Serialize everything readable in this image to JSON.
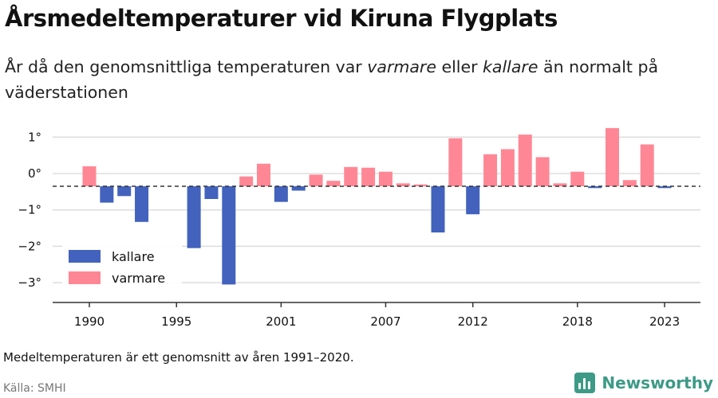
{
  "header": {
    "title": "Årsmedeltemperaturer vid Kiruna Flygplats",
    "subtitle_pre": "År då den genomsnittliga temperaturen var ",
    "subtitle_warm": "varmare",
    "subtitle_mid": " eller ",
    "subtitle_cold": "kallare",
    "subtitle_post": " än normalt på väderstationen"
  },
  "footer": {
    "note": "Medeltemperaturen är ett genomsnitt av åren 1991–2020.",
    "source": "Källa: SMHI",
    "brand": "Newsworthy"
  },
  "colors": {
    "kallare": "#4262bd",
    "varmare": "#ff8795",
    "grid": "#dddddd",
    "reference_line": "#333333",
    "brand": "#3d9a86"
  },
  "chart_data": {
    "type": "bar",
    "title": "Årsmedeltemperaturer vid Kiruna Flygplats",
    "xlabel": "",
    "ylabel": "",
    "ylim": [
      -3.3,
      1.5
    ],
    "yticks": [
      1,
      0,
      -1,
      -2,
      -3
    ],
    "ytick_labels": [
      "1°",
      "0°",
      "−1°",
      "−2°",
      "−3°"
    ],
    "xticks": [
      1990,
      1995,
      2001,
      2007,
      2012,
      2018,
      2023
    ],
    "reference_value": -0.35,
    "grid": true,
    "legend_position": "bottom-left",
    "legend": [
      {
        "key": "kallare",
        "label": "kallare"
      },
      {
        "key": "varmare",
        "label": "varmare"
      }
    ],
    "x": [
      1990,
      1991,
      1992,
      1993,
      1994,
      1995,
      1996,
      1997,
      1998,
      1999,
      2000,
      2001,
      2002,
      2003,
      2004,
      2005,
      2006,
      2007,
      2008,
      2009,
      2010,
      2011,
      2012,
      2013,
      2014,
      2015,
      2016,
      2017,
      2018,
      2019,
      2020,
      2021,
      2022,
      2023
    ],
    "values": [
      0.2,
      -0.8,
      -0.62,
      -1.33,
      null,
      null,
      -2.05,
      -0.7,
      -3.05,
      -0.08,
      0.27,
      -0.78,
      -0.47,
      -0.03,
      -0.2,
      0.18,
      0.16,
      0.05,
      -0.27,
      -0.3,
      -1.62,
      0.97,
      -1.12,
      0.53,
      0.67,
      1.07,
      0.45,
      -0.27,
      0.05,
      -0.4,
      1.25,
      -0.18,
      0.8,
      -0.4
    ]
  }
}
